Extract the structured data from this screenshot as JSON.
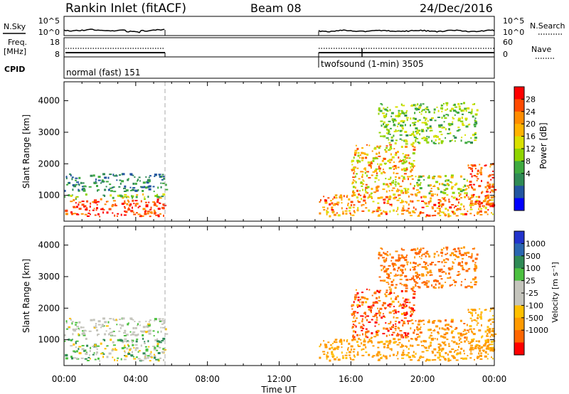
{
  "header": {
    "station": "Rankin Inlet (fitACF)",
    "beam": "Beam 08",
    "date": "24/Dec/2016"
  },
  "noise_panel": {
    "left_label": "N.Sky",
    "right_label": "N.Search",
    "left_ticks": [
      "10^5",
      "10^0"
    ],
    "right_ticks": [
      "10^5",
      "10^0"
    ]
  },
  "freq_panel": {
    "left_label_1": "Freq.",
    "left_label_2": "[MHz]",
    "right_label": "Nave",
    "left_ticks": [
      "18",
      "8"
    ],
    "right_ticks": [
      "60",
      "0"
    ]
  },
  "cpid_panel": {
    "label": "CPID",
    "segments": [
      {
        "text": "normal (fast) 151",
        "start_hour": 0.0,
        "end_hour": 5.65
      },
      {
        "text": "twofsound (1-min) 3505",
        "start_hour": 14.2,
        "end_hour": 24.0
      }
    ]
  },
  "x_axis": {
    "label": "Time UT",
    "range_hours": [
      0,
      24
    ],
    "tick_labels": [
      "00:00",
      "04:00",
      "08:00",
      "12:00",
      "16:00",
      "20:00",
      "00:00"
    ]
  },
  "power_panel": {
    "ylabel": "Slant Range [km]",
    "y_ticks": [
      "1000",
      "2000",
      "3000",
      "4000"
    ],
    "colorbar_label": "Power [dB]",
    "colorbar_ticks": [
      "28",
      "24",
      "20",
      "16",
      "12",
      "8",
      "4"
    ],
    "colors": [
      "#ff0000",
      "#ff4a00",
      "#ff8c00",
      "#ffb300",
      "#d9e000",
      "#8fd400",
      "#3faa3f",
      "#2f8a55",
      "#2255a0",
      "#0000ff"
    ]
  },
  "velocity_panel": {
    "ylabel": "Slant Range [km]",
    "y_ticks": [
      "1000",
      "2000",
      "3000",
      "4000"
    ],
    "colorbar_label": "Velocity [m s⁻¹]",
    "colorbar_ticks": [
      "1000",
      "500",
      "100",
      "25",
      "-25",
      "-100",
      "-500",
      "-1000"
    ],
    "colors": [
      "#2233cc",
      "#2a66b0",
      "#2f8a55",
      "#4cc040",
      "#c4c4bc",
      "#c4c4bc",
      "#ffc000",
      "#ff9a00",
      "#ff6600",
      "#ff0000"
    ]
  },
  "chart_data": {
    "type": "heatmap",
    "title": "Rankin Inlet (fitACF)",
    "xlabel": "Time UT",
    "ylabel": "Slant Range [km]",
    "xlim_hours": [
      0,
      24
    ],
    "ylim_km": [
      180,
      4600
    ],
    "scatter_regions": [
      {
        "t": [
          0.0,
          5.65
        ],
        "r": [
          300,
          850
        ],
        "power": [
          22,
          30
        ],
        "velocity": [
          -60,
          80
        ]
      },
      {
        "t": [
          0.0,
          5.65
        ],
        "r": [
          850,
          1000
        ],
        "power": [
          8,
          20
        ],
        "velocity": [
          -30,
          150
        ]
      },
      {
        "t": [
          0.0,
          5.65
        ],
        "r": [
          1100,
          1450
        ],
        "power": [
          4,
          12
        ],
        "velocity": [
          -30,
          40
        ]
      },
      {
        "t": [
          0.0,
          5.65
        ],
        "r": [
          1450,
          1650
        ],
        "power": [
          4,
          10
        ],
        "velocity": [
          -30,
          40
        ]
      },
      {
        "t": [
          14.2,
          24.0
        ],
        "r": [
          300,
          1000
        ],
        "power": [
          16,
          28
        ],
        "velocity": [
          -250,
          -60
        ]
      },
      {
        "t": [
          16.0,
          19.5
        ],
        "r": [
          1000,
          2600
        ],
        "power": [
          12,
          26
        ],
        "velocity": [
          -800,
          -80
        ]
      },
      {
        "t": [
          19.5,
          22.5
        ],
        "r": [
          1000,
          1600
        ],
        "power": [
          10,
          22
        ],
        "velocity": [
          -400,
          -60
        ]
      },
      {
        "t": [
          22.5,
          24.0
        ],
        "r": [
          600,
          2000
        ],
        "power": [
          20,
          30
        ],
        "velocity": [
          -300,
          -40
        ]
      },
      {
        "t": [
          17.5,
          23.0
        ],
        "r": [
          2600,
          3900
        ],
        "power": [
          8,
          18
        ],
        "velocity": [
          -600,
          -100
        ]
      }
    ]
  }
}
